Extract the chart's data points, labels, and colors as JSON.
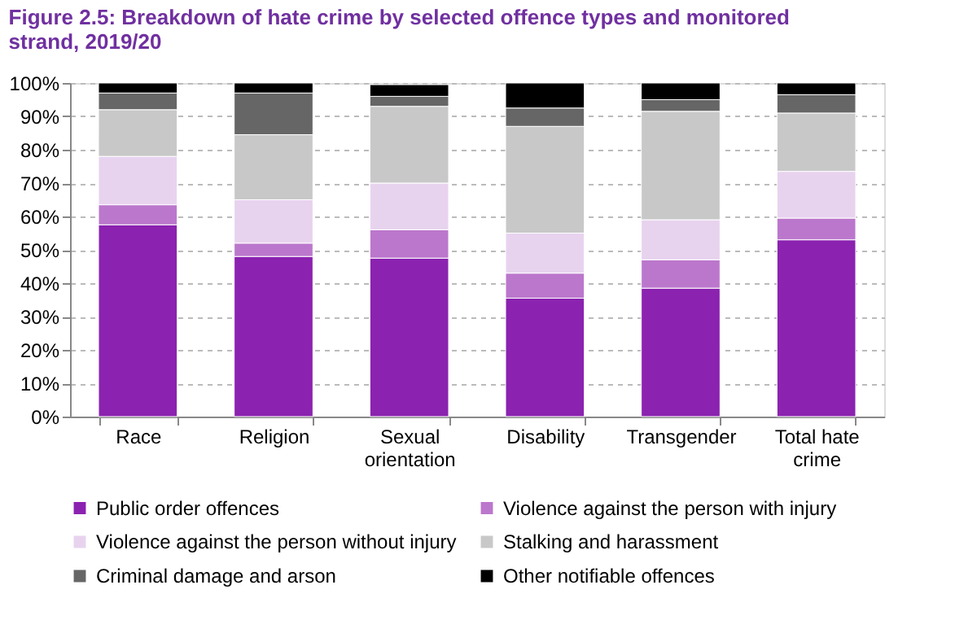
{
  "chart_data": {
    "type": "bar",
    "stacked": true,
    "title": "Figure 2.5: Breakdown of hate crime by selected offence types and monitored strand, 2019/20",
    "categories": [
      "Race",
      "Religion",
      "Sexual orientation",
      "Disability",
      "Transgender",
      "Total hate crime"
    ],
    "series": [
      {
        "name": "Public order offences",
        "color": "#8b22b0",
        "values": [
          57.5,
          48,
          47.5,
          35.5,
          38.5,
          53
        ]
      },
      {
        "name": "Violence against the person with injury",
        "color": "#bb77cc",
        "values": [
          6,
          4,
          8.5,
          7.5,
          8.5,
          6.5
        ]
      },
      {
        "name": "Violence against the person without injury",
        "color": "#e8d3ef",
        "values": [
          14.5,
          13,
          14,
          12,
          12,
          14
        ]
      },
      {
        "name": "Stalking and harassment",
        "color": "#c8c8c8",
        "values": [
          14,
          19.5,
          23,
          32,
          32.5,
          17.5
        ]
      },
      {
        "name": "Criminal damage and arson",
        "color": "#666666",
        "values": [
          5,
          12.5,
          3,
          5.5,
          3.5,
          5.5
        ]
      },
      {
        "name": "Other notifiable offences",
        "color": "#000000",
        "values": [
          3,
          3,
          3.5,
          7.5,
          5,
          3.5
        ]
      }
    ],
    "ylim": [
      0,
      100
    ],
    "yticks": [
      {
        "value": 0,
        "label": "0%"
      },
      {
        "value": 10,
        "label": "10%"
      },
      {
        "value": 20,
        "label": "20%"
      },
      {
        "value": 30,
        "label": "30%"
      },
      {
        "value": 40,
        "label": "40%"
      },
      {
        "value": 50,
        "label": "50%"
      },
      {
        "value": 60,
        "label": "60%"
      },
      {
        "value": 70,
        "label": "70%"
      },
      {
        "value": 80,
        "label": "80%"
      },
      {
        "value": 90,
        "label": "90%"
      },
      {
        "value": 100,
        "label": "100%"
      }
    ],
    "grid": "y",
    "legend": "bottom"
  }
}
